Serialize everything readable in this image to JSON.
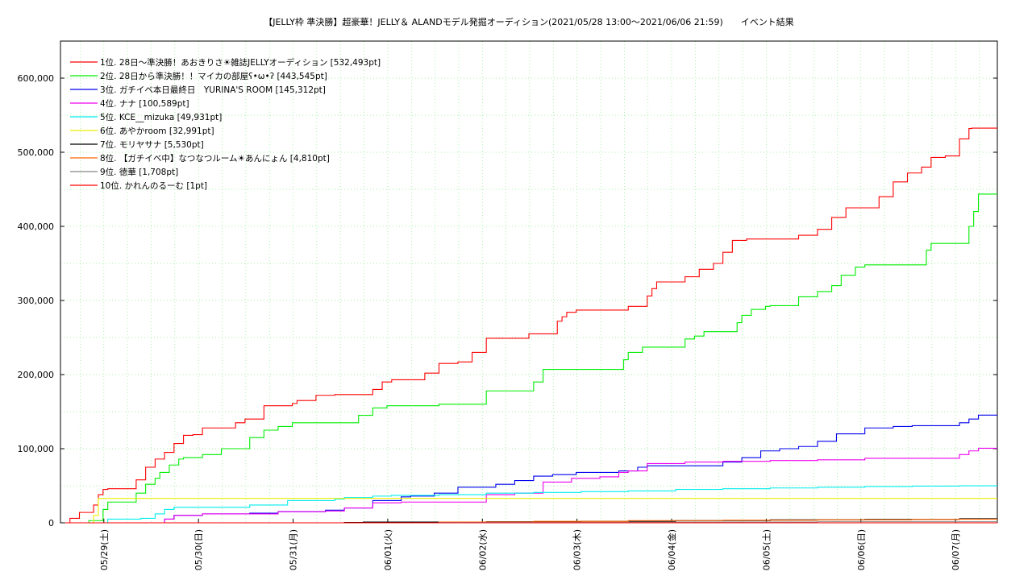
{
  "chart_data": {
    "type": "line",
    "title": "【JELLY枠 準決勝】超豪華！JELLY＆ ALANDモデル発掘オーディション(2021/05/28 13:00〜2021/06/06 21:59)　　イベント結果",
    "xlabel": "",
    "ylabel": "",
    "ylim": [
      0,
      650000
    ],
    "xlim": [
      0,
      9.9
    ],
    "grid": true,
    "legend_position": "top-left",
    "y_ticks": [
      0,
      100000,
      200000,
      300000,
      400000,
      500000,
      600000
    ],
    "y_tick_labels": [
      "0",
      "100,000",
      "200,000",
      "300,000",
      "400,000",
      "500,000",
      "600,000"
    ],
    "x_ticks": [
      0.4583,
      1.4583,
      2.4583,
      3.4583,
      4.4583,
      5.4583,
      6.4583,
      7.4583,
      8.4583,
      9.4583
    ],
    "x_tick_labels": [
      "05/29(土)",
      "05/30(日)",
      "05/31(月)",
      "06/01(火)",
      "06/02(水)",
      "06/03(木)",
      "06/04(金)",
      "06/05(土)",
      "06/06(日)",
      "06/07(月)"
    ],
    "series": [
      {
        "name": "1位. 28日〜準決勝！あおきりさ☀雑誌JELLYオーディション [532,493pt]",
        "color": "#ff0000",
        "x": [
          0.05,
          0.1,
          0.2,
          0.35,
          0.4,
          0.45,
          0.5,
          0.8,
          0.9,
          1.0,
          1.1,
          1.2,
          1.3,
          1.4,
          1.5,
          1.85,
          1.95,
          2.15,
          2.45,
          2.5,
          2.7,
          2.9,
          3.3,
          3.4,
          3.5,
          3.85,
          4.0,
          4.2,
          4.35,
          4.5,
          4.95,
          5.25,
          5.3,
          5.35,
          5.45,
          6.0,
          6.2,
          6.25,
          6.3,
          6.6,
          6.75,
          6.9,
          7.0,
          7.1,
          7.25,
          7.8,
          8.0,
          8.15,
          8.3,
          8.65,
          8.8,
          8.95,
          9.1,
          9.2,
          9.35,
          9.5,
          9.6,
          9.63,
          9.65,
          9.8,
          9.9
        ],
        "y": [
          0,
          6000,
          14000,
          24000,
          38000,
          45000,
          46000,
          58000,
          75000,
          86000,
          95000,
          107000,
          118000,
          119000,
          128000,
          135000,
          140000,
          158000,
          161000,
          165000,
          172000,
          173000,
          180000,
          190000,
          193000,
          202000,
          215000,
          217000,
          230000,
          249000,
          255000,
          272000,
          278000,
          284000,
          287000,
          292000,
          306000,
          316000,
          325000,
          332000,
          342000,
          350000,
          365000,
          381000,
          383000,
          388000,
          396000,
          412000,
          425000,
          440000,
          460000,
          472000,
          480000,
          493000,
          495000,
          518000,
          532000,
          532493,
          532493,
          532493,
          532493
        ]
      },
      {
        "name": "2位. 28日から準決勝！！マイカの部屋ʕ•ω•ʔ [443,545pt]",
        "color": "#00ee00",
        "x": [
          0.05,
          0.3,
          0.45,
          0.5,
          0.8,
          0.9,
          1.0,
          1.05,
          1.15,
          1.25,
          1.3,
          1.5,
          1.7,
          2.0,
          2.15,
          2.3,
          2.45,
          3.0,
          3.15,
          3.3,
          3.45,
          3.95,
          4.0,
          4.5,
          4.7,
          4.95,
          5.0,
          5.1,
          5.3,
          5.8,
          5.95,
          6.0,
          6.15,
          6.5,
          6.6,
          6.7,
          6.8,
          7.0,
          7.15,
          7.2,
          7.3,
          7.45,
          7.5,
          7.8,
          8.0,
          8.15,
          8.25,
          8.4,
          8.5,
          8.65,
          9.0,
          9.15,
          9.2,
          9.5,
          9.6,
          9.65,
          9.7,
          9.8,
          9.9
        ],
        "y": [
          0,
          3000,
          18000,
          28000,
          40000,
          52000,
          60000,
          68000,
          78000,
          86000,
          88000,
          92000,
          100000,
          115000,
          125000,
          130000,
          135000,
          135000,
          145000,
          155000,
          158000,
          158000,
          160000,
          178000,
          178000,
          178000,
          190000,
          207000,
          207000,
          207000,
          220000,
          230000,
          237000,
          237000,
          248000,
          252000,
          258000,
          258000,
          270000,
          280000,
          288000,
          292000,
          293000,
          305000,
          312000,
          320000,
          334000,
          345000,
          348000,
          348000,
          348000,
          368000,
          377000,
          377000,
          400000,
          420000,
          443545,
          443545,
          443545
        ]
      },
      {
        "name": "3位. ガチイベ本日最終日　YURINA'S ROOM [145,312pt]",
        "color": "#0000ee",
        "x": [
          0.05,
          0.9,
          1.1,
          1.2,
          1.5,
          2.0,
          2.3,
          2.8,
          3.0,
          3.3,
          3.6,
          3.7,
          3.95,
          4.2,
          4.6,
          4.8,
          5.0,
          5.2,
          5.45,
          5.9,
          6.1,
          6.2,
          6.7,
          7.0,
          7.2,
          7.4,
          7.6,
          7.8,
          8.0,
          8.2,
          8.5,
          8.8,
          9.0,
          9.3,
          9.5,
          9.6,
          9.7,
          9.9
        ],
        "y": [
          0,
          0,
          5000,
          10000,
          12000,
          13000,
          15000,
          17000,
          20000,
          30000,
          35000,
          36000,
          40000,
          48000,
          52000,
          57000,
          63000,
          65000,
          68000,
          70000,
          75000,
          77000,
          77000,
          82000,
          88000,
          97000,
          100000,
          103000,
          110000,
          120000,
          128000,
          130000,
          131000,
          131000,
          135000,
          140000,
          145312,
          145312
        ]
      },
      {
        "name": "4位. ナナ [100,589pt]",
        "color": "#ee00ee",
        "x": [
          0.05,
          0.9,
          1.1,
          1.2,
          1.5,
          2.0,
          2.3,
          2.8,
          3.0,
          3.3,
          3.6,
          4.0,
          4.2,
          4.5,
          4.8,
          5.0,
          5.1,
          5.4,
          5.7,
          5.9,
          6.0,
          6.2,
          6.6,
          7.0,
          7.3,
          7.5,
          7.8,
          8.0,
          8.5,
          8.8,
          9.3,
          9.5,
          9.6,
          9.7,
          9.9
        ],
        "y": [
          0,
          0,
          5000,
          10000,
          12000,
          12000,
          15000,
          16000,
          20000,
          27000,
          28000,
          28000,
          28000,
          38000,
          40000,
          40000,
          55000,
          60000,
          62000,
          68000,
          70000,
          80000,
          82000,
          83000,
          83000,
          84000,
          84000,
          85000,
          87000,
          87000,
          87000,
          92000,
          97000,
          100589,
          100589
        ]
      },
      {
        "name": "5位. KCE__mizuka [49,931pt]",
        "color": "#00eeee",
        "x": [
          0.05,
          0.5,
          0.85,
          1.0,
          1.1,
          1.2,
          1.5,
          2.0,
          2.4,
          2.9,
          3.0,
          3.3,
          3.5,
          4.0,
          4.4,
          4.5,
          5.0,
          5.5,
          6.0,
          6.5,
          7.0,
          7.5,
          8.0,
          8.5,
          9.0,
          9.5,
          9.9
        ],
        "y": [
          0,
          5000,
          6000,
          12000,
          18000,
          21000,
          21000,
          24000,
          30000,
          32000,
          34000,
          36000,
          37000,
          38000,
          38000,
          40000,
          41000,
          42000,
          43000,
          45000,
          46000,
          47000,
          48000,
          49000,
          49500,
          49931,
          49931
        ]
      },
      {
        "name": "6位. あやかroom [32,991pt]",
        "color": "#eeee00",
        "x": [
          0.05,
          0.3,
          0.35,
          0.4,
          9.9
        ],
        "y": [
          0,
          0,
          10000,
          32991,
          32991
        ]
      },
      {
        "name": "7位. モリヤサナ [5,530pt]",
        "color": "#000000",
        "x": [
          0.05,
          2.0,
          3.0,
          3.2,
          4.5,
          5.5,
          6.5,
          7.5,
          8.5,
          9.5,
          9.9
        ],
        "y": [
          0,
          0,
          500,
          1000,
          1500,
          2000,
          3000,
          4000,
          4500,
          5530,
          5530
        ]
      },
      {
        "name": "8位. 【ガチイベ中】なつなつルーム☀あんにょん [4,810pt]",
        "color": "#ff6600",
        "x": [
          0.05,
          3.5,
          4.0,
          5.0,
          6.0,
          7.0,
          8.0,
          9.0,
          9.5,
          9.9
        ],
        "y": [
          0,
          0,
          1000,
          2000,
          3000,
          3500,
          4000,
          4500,
          4810,
          4810
        ]
      },
      {
        "name": "9位. 徳華 [1,708pt]",
        "color": "#888888",
        "x": [
          0.05,
          4.0,
          6.0,
          8.0,
          9.9
        ],
        "y": [
          0,
          500,
          1000,
          1500,
          1708
        ]
      },
      {
        "name": "10位. かれんのるーむ [1pt]",
        "color": "#ff0000",
        "x": [
          0.05,
          9.9
        ],
        "y": [
          0,
          1
        ]
      }
    ]
  }
}
